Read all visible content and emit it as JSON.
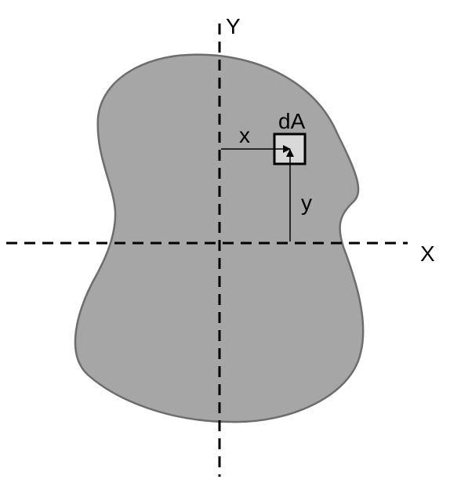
{
  "diagram": {
    "title": "",
    "axes": {
      "x_label": "X",
      "y_label": "Y"
    },
    "element": {
      "label": "dA"
    },
    "distances": {
      "x_label": "x",
      "y_label": "y"
    },
    "colors": {
      "region_fill": "#a6a6a6",
      "region_stroke": "#6d6d6d",
      "element_fill": "#d9d9d9",
      "axis": "#000000",
      "text": "#000000"
    }
  }
}
